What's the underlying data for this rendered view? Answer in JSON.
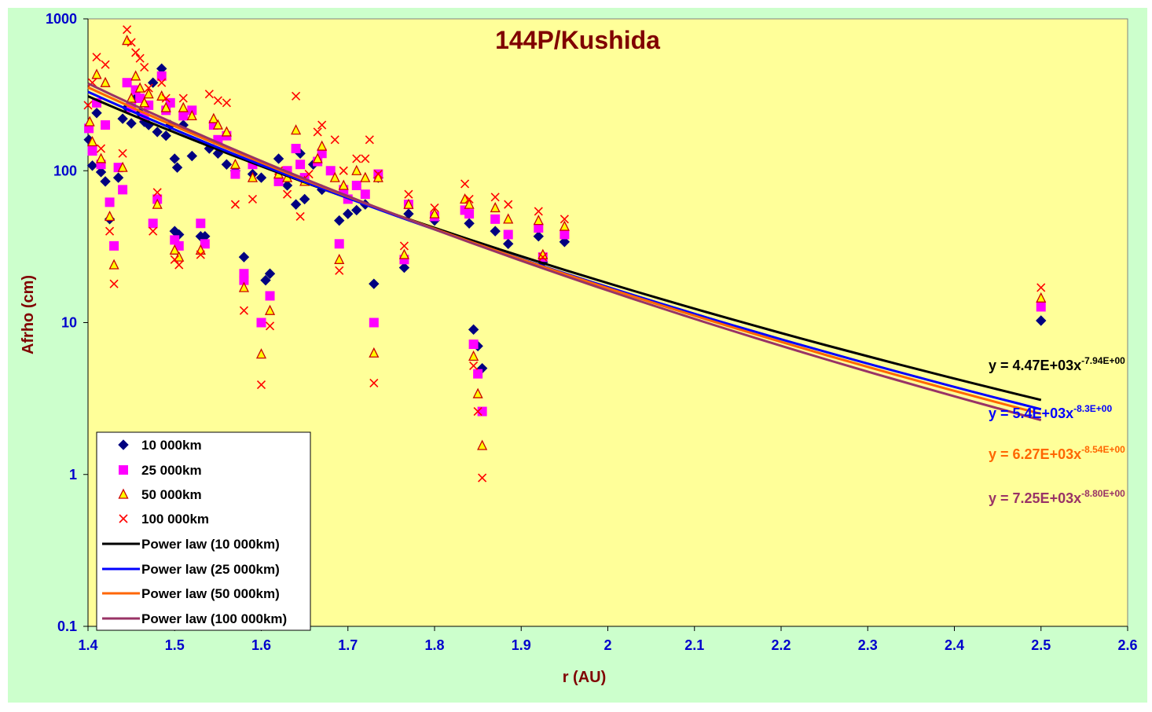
{
  "chart_data": {
    "type": "scatter",
    "title": "144P/Kushida",
    "xlabel": "r (AU)",
    "ylabel": "Afrho (cm)",
    "xlim": [
      1.4,
      2.6
    ],
    "ylim": [
      0.1,
      1000
    ],
    "yscale": "log",
    "x_ticks": [
      "1.4",
      "1.5",
      "1.6",
      "1.7",
      "1.8",
      "1.9",
      "2",
      "2.1",
      "2.2",
      "2.3",
      "2.4",
      "2.5",
      "2.6"
    ],
    "y_ticks": [
      "0.1",
      "1",
      "10",
      "100",
      "1000"
    ],
    "legend_position": "bottom-left",
    "grid": false,
    "colors": {
      "outer_bg": "#ccffcc",
      "plot_bg": "#ffff99",
      "axis_text": "#0000cc",
      "title": "#800000"
    },
    "series": [
      {
        "name": "10 000km",
        "marker": "diamond",
        "color": "#000080",
        "points": [
          [
            1.401,
            160
          ],
          [
            1.405,
            108
          ],
          [
            1.41,
            240
          ],
          [
            1.415,
            98
          ],
          [
            1.42,
            85
          ],
          [
            1.425,
            48
          ],
          [
            1.435,
            90
          ],
          [
            1.44,
            220
          ],
          [
            1.445,
            260
          ],
          [
            1.45,
            205
          ],
          [
            1.455,
            300
          ],
          [
            1.46,
            240
          ],
          [
            1.465,
            210
          ],
          [
            1.47,
            200
          ],
          [
            1.475,
            380
          ],
          [
            1.48,
            180
          ],
          [
            1.485,
            470
          ],
          [
            1.49,
            170
          ],
          [
            1.495,
            200
          ],
          [
            1.5,
            120
          ],
          [
            1.503,
            105
          ],
          [
            1.5,
            40
          ],
          [
            1.505,
            38
          ],
          [
            1.51,
            200
          ],
          [
            1.52,
            125
          ],
          [
            1.53,
            37
          ],
          [
            1.535,
            37
          ],
          [
            1.54,
            140
          ],
          [
            1.55,
            130
          ],
          [
            1.56,
            110
          ],
          [
            1.57,
            100
          ],
          [
            1.58,
            27
          ],
          [
            1.59,
            95
          ],
          [
            1.6,
            90
          ],
          [
            1.605,
            19
          ],
          [
            1.61,
            21
          ],
          [
            1.62,
            120
          ],
          [
            1.63,
            80
          ],
          [
            1.64,
            60
          ],
          [
            1.645,
            130
          ],
          [
            1.65,
            65
          ],
          [
            1.66,
            110
          ],
          [
            1.67,
            75
          ],
          [
            1.69,
            47
          ],
          [
            1.7,
            52
          ],
          [
            1.71,
            55
          ],
          [
            1.72,
            60
          ],
          [
            1.73,
            18
          ],
          [
            1.735,
            90
          ],
          [
            1.765,
            23
          ],
          [
            1.77,
            52
          ],
          [
            1.8,
            47
          ],
          [
            1.84,
            45
          ],
          [
            1.845,
            9
          ],
          [
            1.85,
            7
          ],
          [
            1.855,
            5
          ],
          [
            1.87,
            40
          ],
          [
            1.885,
            33
          ],
          [
            1.92,
            37
          ],
          [
            1.925,
            25
          ],
          [
            1.95,
            34
          ],
          [
            2.5,
            10.3
          ]
        ]
      },
      {
        "name": "25 000km",
        "marker": "square",
        "color": "#ff00ff",
        "points": [
          [
            1.401,
            190
          ],
          [
            1.405,
            135
          ],
          [
            1.41,
            280
          ],
          [
            1.415,
            110
          ],
          [
            1.42,
            200
          ],
          [
            1.425,
            62
          ],
          [
            1.43,
            32
          ],
          [
            1.435,
            105
          ],
          [
            1.44,
            75
          ],
          [
            1.445,
            380
          ],
          [
            1.45,
            260
          ],
          [
            1.455,
            340
          ],
          [
            1.46,
            300
          ],
          [
            1.465,
            230
          ],
          [
            1.47,
            270
          ],
          [
            1.475,
            45
          ],
          [
            1.48,
            65
          ],
          [
            1.485,
            420
          ],
          [
            1.49,
            250
          ],
          [
            1.495,
            280
          ],
          [
            1.5,
            35
          ],
          [
            1.505,
            32
          ],
          [
            1.51,
            230
          ],
          [
            1.52,
            250
          ],
          [
            1.53,
            45
          ],
          [
            1.535,
            33
          ],
          [
            1.545,
            200
          ],
          [
            1.55,
            160
          ],
          [
            1.56,
            170
          ],
          [
            1.57,
            95
          ],
          [
            1.58,
            21
          ],
          [
            1.58,
            19
          ],
          [
            1.59,
            110
          ],
          [
            1.6,
            10
          ],
          [
            1.61,
            15
          ],
          [
            1.62,
            85
          ],
          [
            1.63,
            100
          ],
          [
            1.64,
            140
          ],
          [
            1.645,
            110
          ],
          [
            1.65,
            90
          ],
          [
            1.665,
            115
          ],
          [
            1.67,
            130
          ],
          [
            1.68,
            100
          ],
          [
            1.69,
            33
          ],
          [
            1.695,
            75
          ],
          [
            1.7,
            65
          ],
          [
            1.71,
            80
          ],
          [
            1.72,
            70
          ],
          [
            1.73,
            10
          ],
          [
            1.735,
            95
          ],
          [
            1.765,
            26
          ],
          [
            1.77,
            60
          ],
          [
            1.8,
            50
          ],
          [
            1.835,
            55
          ],
          [
            1.84,
            52
          ],
          [
            1.845,
            7.2
          ],
          [
            1.85,
            4.6
          ],
          [
            1.855,
            2.6
          ],
          [
            1.87,
            48
          ],
          [
            1.885,
            38
          ],
          [
            1.92,
            42
          ],
          [
            1.925,
            27
          ],
          [
            1.95,
            38
          ],
          [
            2.5,
            12.7
          ]
        ]
      },
      {
        "name": "50 000km",
        "marker": "triangle",
        "color": "#cc0000",
        "points": [
          [
            1.402,
            210
          ],
          [
            1.405,
            155
          ],
          [
            1.41,
            430
          ],
          [
            1.415,
            120
          ],
          [
            1.42,
            380
          ],
          [
            1.425,
            50
          ],
          [
            1.43,
            24
          ],
          [
            1.44,
            105
          ],
          [
            1.445,
            720
          ],
          [
            1.45,
            300
          ],
          [
            1.455,
            420
          ],
          [
            1.46,
            350
          ],
          [
            1.465,
            280
          ],
          [
            1.47,
            320
          ],
          [
            1.48,
            60
          ],
          [
            1.485,
            310
          ],
          [
            1.49,
            260
          ],
          [
            1.5,
            30
          ],
          [
            1.505,
            27
          ],
          [
            1.51,
            260
          ],
          [
            1.52,
            230
          ],
          [
            1.53,
            30
          ],
          [
            1.545,
            220
          ],
          [
            1.55,
            200
          ],
          [
            1.56,
            180
          ],
          [
            1.57,
            110
          ],
          [
            1.58,
            17
          ],
          [
            1.59,
            90
          ],
          [
            1.6,
            6.2
          ],
          [
            1.61,
            12
          ],
          [
            1.62,
            95
          ],
          [
            1.63,
            90
          ],
          [
            1.64,
            185
          ],
          [
            1.65,
            85
          ],
          [
            1.665,
            120
          ],
          [
            1.67,
            145
          ],
          [
            1.685,
            90
          ],
          [
            1.69,
            26
          ],
          [
            1.695,
            80
          ],
          [
            1.71,
            100
          ],
          [
            1.72,
            90
          ],
          [
            1.73,
            6.3
          ],
          [
            1.735,
            90
          ],
          [
            1.765,
            28
          ],
          [
            1.77,
            60
          ],
          [
            1.8,
            52
          ],
          [
            1.835,
            65
          ],
          [
            1.84,
            60
          ],
          [
            1.845,
            6
          ],
          [
            1.85,
            3.4
          ],
          [
            1.855,
            1.55
          ],
          [
            1.87,
            57
          ],
          [
            1.885,
            48
          ],
          [
            1.92,
            47
          ],
          [
            1.925,
            28
          ],
          [
            1.95,
            43
          ],
          [
            2.5,
            14.5
          ]
        ]
      },
      {
        "name": "100 000km",
        "marker": "x",
        "color": "#ff0000",
        "points": [
          [
            1.4,
            270
          ],
          [
            1.405,
            380
          ],
          [
            1.41,
            560
          ],
          [
            1.415,
            140
          ],
          [
            1.42,
            500
          ],
          [
            1.425,
            40
          ],
          [
            1.43,
            18
          ],
          [
            1.44,
            130
          ],
          [
            1.445,
            850
          ],
          [
            1.45,
            700
          ],
          [
            1.455,
            600
          ],
          [
            1.46,
            550
          ],
          [
            1.465,
            480
          ],
          [
            1.47,
            350
          ],
          [
            1.475,
            40
          ],
          [
            1.48,
            72
          ],
          [
            1.485,
            380
          ],
          [
            1.49,
            300
          ],
          [
            1.5,
            26
          ],
          [
            1.505,
            24
          ],
          [
            1.51,
            300
          ],
          [
            1.53,
            28
          ],
          [
            1.54,
            320
          ],
          [
            1.55,
            290
          ],
          [
            1.56,
            280
          ],
          [
            1.57,
            60
          ],
          [
            1.58,
            12
          ],
          [
            1.59,
            65
          ],
          [
            1.6,
            3.9
          ],
          [
            1.61,
            9.5
          ],
          [
            1.62,
            100
          ],
          [
            1.63,
            70
          ],
          [
            1.64,
            310
          ],
          [
            1.645,
            50
          ],
          [
            1.655,
            95
          ],
          [
            1.665,
            180
          ],
          [
            1.67,
            200
          ],
          [
            1.685,
            160
          ],
          [
            1.69,
            22
          ],
          [
            1.695,
            100
          ],
          [
            1.71,
            120
          ],
          [
            1.72,
            120
          ],
          [
            1.725,
            160
          ],
          [
            1.73,
            4
          ],
          [
            1.735,
            95
          ],
          [
            1.765,
            32
          ],
          [
            1.77,
            70
          ],
          [
            1.8,
            57
          ],
          [
            1.835,
            82
          ],
          [
            1.84,
            65
          ],
          [
            1.845,
            5.2
          ],
          [
            1.85,
            2.6
          ],
          [
            1.855,
            0.95
          ],
          [
            1.87,
            67
          ],
          [
            1.885,
            60
          ],
          [
            1.92,
            54
          ],
          [
            1.925,
            27
          ],
          [
            1.95,
            48
          ],
          [
            2.5,
            17
          ]
        ]
      }
    ],
    "fits": [
      {
        "name": "Power law (10 000km)",
        "coef": 4470,
        "exp": -7.94,
        "color": "#000000",
        "label_coef": "y = 4.47E+03x",
        "label_exp": "-7.94E+00"
      },
      {
        "name": "Power law (25 000km)",
        "coef": 5400,
        "exp": -8.3,
        "color": "#0000ff",
        "label_coef": "y = 5.4E+03x",
        "label_exp": "-8.3E+00"
      },
      {
        "name": "Power law (50 000km)",
        "coef": 6270,
        "exp": -8.54,
        "color": "#ff6600",
        "label_coef": "y = 6.27E+03x",
        "label_exp": "-8.54E+00"
      },
      {
        "name": "Power law (100 000km)",
        "coef": 7250,
        "exp": -8.8,
        "color": "#993366",
        "label_coef": "y = 7.25E+03x",
        "label_exp": "-8.80E+00"
      }
    ],
    "fit_range": [
      1.4,
      2.5
    ]
  }
}
